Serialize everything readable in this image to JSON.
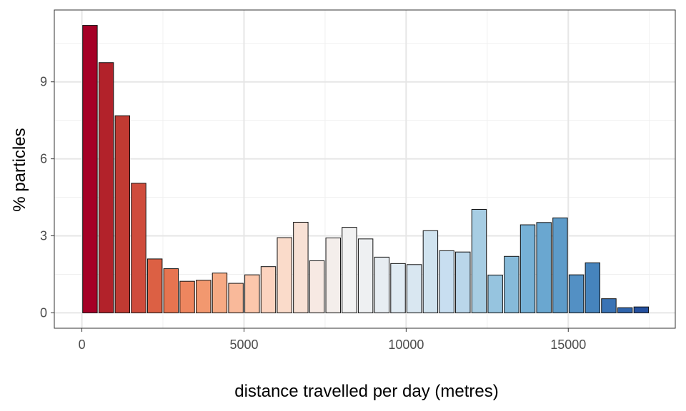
{
  "chart_data": {
    "type": "bar",
    "title": "",
    "xlabel": "distance travelled per day (metres)",
    "ylabel": "% particles",
    "xlim": [
      -850,
      18300
    ],
    "ylim": [
      -0.6,
      11.8
    ],
    "x_ticks": [
      0,
      5000,
      10000,
      15000
    ],
    "y_ticks": [
      0,
      3,
      6,
      9
    ],
    "bin_width": 500,
    "grid": true,
    "legend": "none",
    "x": [
      250,
      750,
      1250,
      1750,
      2250,
      2750,
      3250,
      3750,
      4250,
      4750,
      5250,
      5750,
      6250,
      6750,
      7250,
      7750,
      8250,
      8750,
      9250,
      9750,
      10250,
      10750,
      11250,
      11750,
      12250,
      12750,
      13250,
      13750,
      14250,
      14750,
      15250,
      15750,
      16250,
      16750,
      17250
    ],
    "values": [
      11.2,
      9.75,
      7.68,
      5.05,
      2.1,
      1.72,
      1.23,
      1.27,
      1.55,
      1.15,
      1.48,
      1.8,
      2.93,
      3.53,
      2.03,
      2.92,
      3.33,
      2.88,
      2.17,
      1.92,
      1.88,
      3.2,
      2.42,
      2.37,
      4.03,
      1.47,
      2.2,
      3.43,
      3.52,
      3.7,
      1.48,
      1.95,
      0.55,
      0.2,
      0.23
    ],
    "colors": [
      "#a50026",
      "#b2222a",
      "#c13a32",
      "#cf4c3c",
      "#dc6044",
      "#e77450",
      "#ee865f",
      "#f2986f",
      "#f6aa84",
      "#f9b99a",
      "#fcc7ac",
      "#fcd3bf",
      "#fadbca",
      "#f8e1d5",
      "#f7e9e3",
      "#f4eeeb",
      "#f2f2f2",
      "#eef0f2",
      "#e7edf2",
      "#e0ebf3",
      "#d9e7f1",
      "#d0e3ef",
      "#c8def0",
      "#bad6ea",
      "#a7cde3",
      "#96c4df",
      "#86bad9",
      "#76b1d6",
      "#6aa7d0",
      "#5d9bc9",
      "#5390c4",
      "#4684bd",
      "#3a73b5",
      "#2f64ac",
      "#24509f"
    ]
  }
}
